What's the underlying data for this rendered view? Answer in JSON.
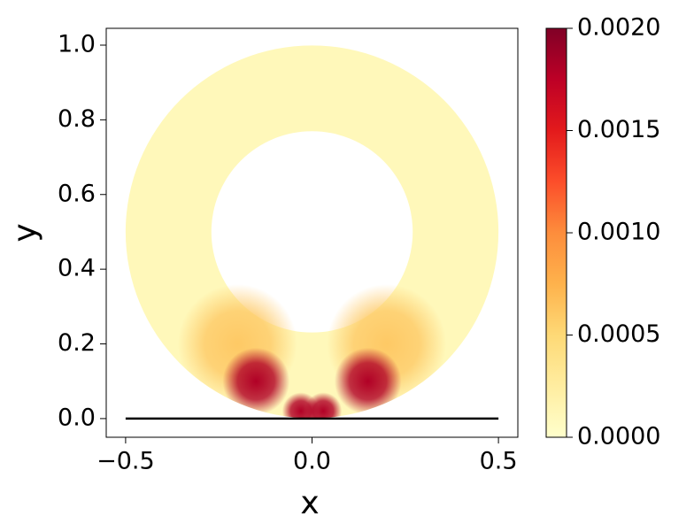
{
  "chart_data": {
    "type": "field",
    "xlabel": "x",
    "ylabel": "y",
    "xlim": [
      -0.552,
      0.552
    ],
    "ylim": [
      -0.05,
      1.045
    ],
    "xticks": [
      {
        "value": -0.5,
        "label": "−0.5"
      },
      {
        "value": 0,
        "label": "0.0"
      },
      {
        "value": 0.5,
        "label": "0.5"
      }
    ],
    "yticks": [
      {
        "value": 0,
        "label": "0.0"
      },
      {
        "value": 0.2,
        "label": "0.2"
      },
      {
        "value": 0.4,
        "label": "0.4"
      },
      {
        "value": 0.6,
        "label": "0.6"
      },
      {
        "value": 0.8,
        "label": "0.8"
      },
      {
        "value": 1,
        "label": "1.0"
      }
    ],
    "annulus": {
      "center": [
        0,
        0.5
      ],
      "outer_radius": 0.5,
      "inner_radius": 0.27,
      "base_value": 0.0001
    },
    "hotspots": [
      {
        "x": -0.2,
        "y": 0.2,
        "value": 0.0006
      },
      {
        "x": 0.2,
        "y": 0.2,
        "value": 0.0006
      },
      {
        "x": -0.15,
        "y": 0.1,
        "value": 0.0018
      },
      {
        "x": 0.15,
        "y": 0.1,
        "value": 0.0018
      },
      {
        "x": -0.03,
        "y": 0.02,
        "value": 0.0018
      },
      {
        "x": 0.03,
        "y": 0.02,
        "value": 0.0018
      }
    ],
    "boundary_line": {
      "x": [
        -0.5,
        0.5
      ],
      "y": [
        0,
        0
      ],
      "color": "#000000"
    },
    "colorbar": {
      "cmap": "YlOrRd",
      "lim": [
        0,
        0.002
      ],
      "ticks": [
        {
          "value": 0,
          "label": "0.0000"
        },
        {
          "value": 0.0005,
          "label": "0.0005"
        },
        {
          "value": 0.001,
          "label": "0.0010"
        },
        {
          "value": 0.0015,
          "label": "0.0015"
        },
        {
          "value": 0.002,
          "label": "0.0020"
        }
      ]
    }
  }
}
